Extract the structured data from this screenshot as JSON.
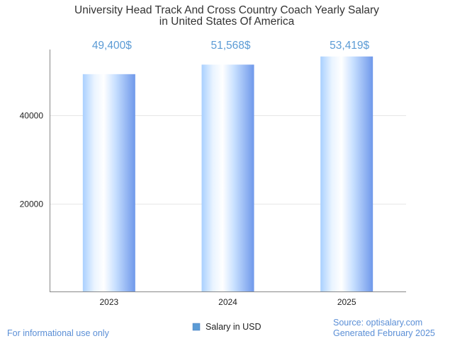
{
  "chart_data": {
    "type": "bar",
    "title": [
      "University Head Track And Cross Country Coach Yearly Salary",
      "in United States Of America"
    ],
    "categories": [
      "2023",
      "2024",
      "2025"
    ],
    "series": [
      {
        "name": "Salary in USD",
        "values": [
          49400,
          51568,
          53419
        ]
      }
    ],
    "data_labels": [
      "49,400$",
      "51,568$",
      "53,419$"
    ],
    "y_ticks": [
      20000,
      40000
    ],
    "y_tick_labels": [
      "20000",
      "40000"
    ],
    "ylim": [
      0,
      55000
    ],
    "xlabel": "",
    "ylabel": "",
    "grid": true,
    "legend_position": "bottom",
    "colors": {
      "bar_light": "#eaf4ff",
      "bar_mid": "#b3d7ff",
      "bar_dark": "#6f98ea",
      "label": "#5b9bd5",
      "grid": "#e6e6e6",
      "axis": "#888888"
    }
  },
  "footer": {
    "left_note": "For informational use only",
    "source": "Source: optisalary.com",
    "generated": "Generated February 2025"
  }
}
